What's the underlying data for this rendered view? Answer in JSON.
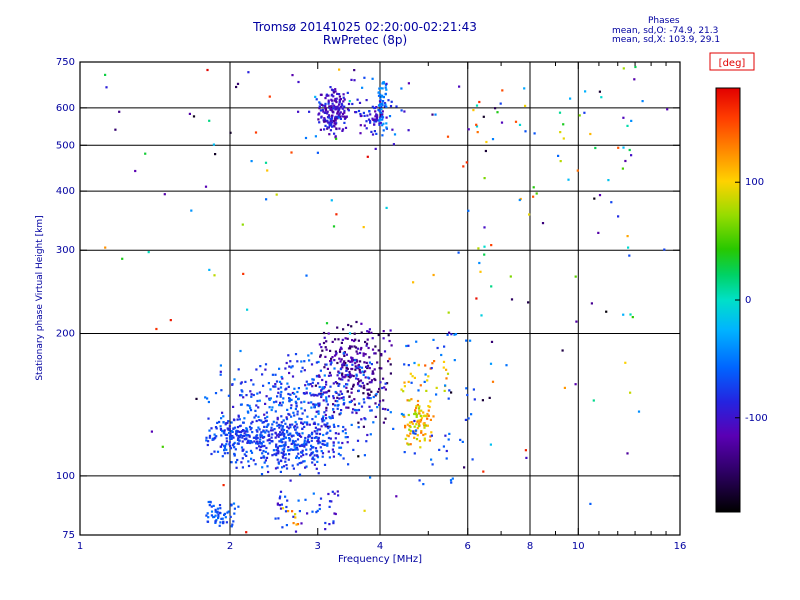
{
  "title": {
    "line1": "Tromsø 20141025 02:20:00-02:21:43",
    "line2": "RwPretec (8p)"
  },
  "stats": {
    "header": "Phases",
    "o": "mean, sd,O: -74.9, 21.3",
    "x": "mean, sd,X: 103.9, 29.1"
  },
  "colors": {
    "text_navy": "#0000a0",
    "axis_black": "#000000",
    "deg_red": "#e00000",
    "background": "#ffffff"
  },
  "chart_data": {
    "type": "scatter",
    "title": "Tromsø 20141025 02:20:00-02:21:43 / RwPretec (8p)",
    "xlabel": "Frequency [MHz]",
    "ylabel": "Stationary phase Virtual Height [km]",
    "x_scale": "log",
    "x_range": [
      1,
      16
    ],
    "x_ticks": [
      1,
      2,
      3,
      4,
      6,
      8,
      10,
      16
    ],
    "x_minor_ticks": [
      5,
      7,
      9,
      11,
      12,
      13,
      14,
      15
    ],
    "y_scale": "log",
    "y_range": [
      75,
      750
    ],
    "y_ticks": [
      75,
      100,
      200,
      300,
      400,
      500,
      600,
      750
    ],
    "grid_x": [
      2,
      4,
      6,
      8,
      10
    ],
    "grid_y": [
      100,
      200,
      300,
      400,
      500,
      600
    ],
    "grid": true,
    "legend_position": "right-colorbar",
    "colorbar": {
      "label": "[deg]",
      "ticks": [
        100,
        0,
        -100
      ],
      "range": [
        -180,
        180
      ],
      "stops": [
        [
          0.0,
          "#000000"
        ],
        [
          0.1,
          "#30006a"
        ],
        [
          0.18,
          "#5a00b4"
        ],
        [
          0.26,
          "#2424e0"
        ],
        [
          0.34,
          "#0064ff"
        ],
        [
          0.43,
          "#00b4ff"
        ],
        [
          0.5,
          "#00e0c8"
        ],
        [
          0.56,
          "#00d264"
        ],
        [
          0.62,
          "#28c800"
        ],
        [
          0.7,
          "#96dc00"
        ],
        [
          0.78,
          "#ffd200"
        ],
        [
          0.86,
          "#ff8200"
        ],
        [
          0.93,
          "#ff3c00"
        ],
        [
          1.0,
          "#e10000"
        ]
      ]
    },
    "clusters": [
      {
        "name": "f-region-dense",
        "n": 170,
        "f": [
          2.95,
          3.5
        ],
        "h": [
          515,
          665
        ],
        "phase": [
          -130,
          -75
        ],
        "dist": "tri"
      },
      {
        "name": "f-region-right",
        "n": 70,
        "f": [
          3.5,
          4.35
        ],
        "h": [
          515,
          640
        ],
        "phase": [
          -120,
          -70
        ],
        "dist": "tri"
      },
      {
        "name": "f-region-cyan-streak",
        "n": 45,
        "f": [
          3.97,
          4.12
        ],
        "h": [
          530,
          680
        ],
        "phase": [
          -65,
          -35
        ],
        "dist": "uniform"
      },
      {
        "name": "f-region-halo",
        "n": 25,
        "f": [
          2.8,
          4.6
        ],
        "h": [
          490,
          700
        ],
        "phase": [
          -120,
          -40
        ],
        "dist": "uniform"
      },
      {
        "name": "e-region-dark-streaks",
        "n": 260,
        "f": [
          2.9,
          4.3
        ],
        "h": [
          125,
          215
        ],
        "phase": [
          -155,
          -100
        ],
        "dist": "tri"
      },
      {
        "name": "e-region-main-cloud",
        "n": 480,
        "f": [
          1.75,
          4.4
        ],
        "h": [
          95,
          185
        ],
        "phase": [
          -105,
          -45
        ],
        "dist": "tri"
      },
      {
        "name": "e-region-dense-band",
        "n": 300,
        "f": [
          1.95,
          3.4
        ],
        "h": [
          100,
          135
        ],
        "phase": [
          -95,
          -55
        ],
        "dist": "tri"
      },
      {
        "name": "e-region-left-blob",
        "n": 120,
        "f": [
          1.75,
          2.3
        ],
        "h": [
          105,
          135
        ],
        "phase": [
          -90,
          -55
        ],
        "dist": "tri"
      },
      {
        "name": "x-mode-orange-cluster",
        "n": 90,
        "f": [
          4.35,
          5.2
        ],
        "h": [
          112,
          148
        ],
        "phase": [
          70,
          140
        ],
        "dist": "tri"
      },
      {
        "name": "x-mode-orange-upper",
        "n": 25,
        "f": [
          4.4,
          5.6
        ],
        "h": [
          150,
          175
        ],
        "phase": [
          80,
          140
        ],
        "dist": "uniform"
      },
      {
        "name": "right-cyan-sparse",
        "n": 60,
        "f": [
          4.4,
          6.2
        ],
        "h": [
          95,
          200
        ],
        "phase": [
          -90,
          -40
        ],
        "dist": "uniform"
      },
      {
        "name": "bottom-left-group",
        "n": 55,
        "f": [
          1.72,
          2.1
        ],
        "h": [
          77,
          90
        ],
        "phase": [
          -80,
          -45
        ],
        "dist": "tri"
      },
      {
        "name": "bottom-mid-group",
        "n": 45,
        "f": [
          2.45,
          3.3
        ],
        "h": [
          76,
          93
        ],
        "phase": [
          -110,
          -50
        ],
        "dist": "uniform"
      },
      {
        "name": "bottom-orange-spots",
        "n": 8,
        "f": [
          2.55,
          2.75
        ],
        "h": [
          78,
          86
        ],
        "phase": [
          90,
          150
        ],
        "dist": "uniform"
      },
      {
        "name": "sparse-background",
        "n": 130,
        "f": [
          1.05,
          15.5
        ],
        "h": [
          76,
          740
        ],
        "phase": [
          -180,
          180
        ],
        "dist": "uniform"
      },
      {
        "name": "column-6mhz",
        "n": 25,
        "f": [
          6.2,
          6.9
        ],
        "h": [
          90,
          620
        ],
        "phase": [
          -180,
          180
        ],
        "dist": "uniform"
      },
      {
        "name": "column-8-13mhz",
        "n": 35,
        "f": [
          7.5,
          13.0
        ],
        "h": [
          80,
          650
        ],
        "phase": [
          -180,
          180
        ],
        "dist": "uniform"
      }
    ]
  }
}
